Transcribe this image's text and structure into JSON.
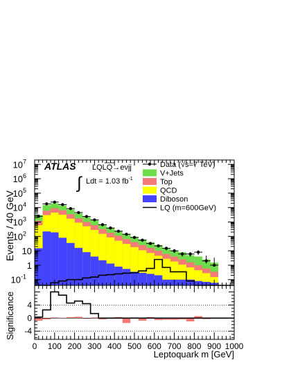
{
  "chart_data": [
    {
      "type": "area",
      "panel": "main",
      "ylabel": "Events / 40 GeV",
      "yscale": "log",
      "ylim": [
        0.04,
        20000000
      ],
      "xlim": [
        0,
        1000
      ],
      "bin_edges": [
        0,
        40,
        80,
        120,
        160,
        200,
        240,
        280,
        320,
        360,
        400,
        440,
        480,
        520,
        560,
        600,
        640,
        680,
        720,
        760,
        800,
        840,
        880,
        920,
        960,
        1000
      ],
      "y_ticks": [
        {
          "label_base": "10",
          "label_exp": "7",
          "value": 10000000
        },
        {
          "label_base": "10",
          "label_exp": "6",
          "value": 1000000
        },
        {
          "label_base": "10",
          "label_exp": "5",
          "value": 100000
        },
        {
          "label_base": "10",
          "label_exp": "4",
          "value": 10000
        },
        {
          "label_base": "10",
          "label_exp": "3",
          "value": 1000
        },
        {
          "label_base": "10",
          "label_exp": "2",
          "value": 100
        },
        {
          "label_base": "10",
          "label_exp": "",
          "value": 10
        },
        {
          "label_base": "1",
          "label_exp": "",
          "value": 1
        },
        {
          "label_base": "10",
          "label_exp": "-1",
          "value": 0.1
        }
      ],
      "stack_cumulative": [
        {
          "name": "V+Jets",
          "color": "#6fdc4b",
          "values": [
            3000,
            15000,
            20000,
            14000,
            7500,
            4000,
            2200,
            1300,
            700,
            400,
            240,
            150,
            90,
            60,
            40,
            25,
            15,
            10,
            8,
            5,
            4,
            2.5,
            1.5,
            0,
            0
          ]
        },
        {
          "name": "Top",
          "color": "#f57b76",
          "values": [
            1200,
            6000,
            9000,
            6500,
            3500,
            1800,
            1000,
            600,
            320,
            180,
            110,
            65,
            40,
            25,
            16,
            10,
            6,
            4,
            2.5,
            1.6,
            1,
            0.6,
            0.35,
            0,
            0
          ]
        },
        {
          "name": "QCD",
          "color": "#ffff00",
          "values": [
            600,
            3000,
            4500,
            3200,
            1700,
            900,
            500,
            280,
            150,
            85,
            50,
            30,
            18,
            11,
            7,
            4.5,
            2.8,
            1.8,
            1.1,
            0.7,
            0.45,
            0.28,
            0.15,
            0,
            0
          ]
        },
        {
          "name": "Diboson",
          "color": "#4444ff",
          "values": [
            15,
            220,
            190,
            80,
            35,
            16,
            8,
            4,
            2.2,
            1.3,
            0.8,
            0.55,
            0.35,
            0.3,
            0.25,
            0.2,
            0.1,
            0.1,
            0.1,
            0.1,
            0.08,
            0.07,
            0.06,
            0,
            0
          ]
        }
      ],
      "data_points": {
        "name": "Data (√s=7 TeV)",
        "x": [
          20,
          60,
          100,
          140,
          180,
          220,
          260,
          300,
          340,
          380,
          420,
          460,
          500,
          540,
          580,
          620,
          660,
          700,
          740,
          780,
          820,
          860,
          900
        ],
        "y": [
          2500,
          18000,
          24000,
          16000,
          8500,
          4500,
          2400,
          1400,
          650,
          380,
          230,
          140,
          85,
          55,
          32,
          22,
          15,
          10,
          6,
          6,
          8,
          2,
          1
        ],
        "err_low": [
          2450,
          17850,
          23840,
          15870,
          8410,
          4430,
          2350,
          1360,
          620,
          360,
          215,
          128,
          75,
          47,
          26,
          17,
          11,
          7,
          4,
          4,
          5.2,
          1.3,
          0.8
        ],
        "err_high": [
          2550,
          18150,
          24160,
          16130,
          8590,
          4570,
          2450,
          1440,
          680,
          400,
          245,
          152,
          95,
          63,
          38,
          27,
          19,
          13,
          8,
          8,
          10.8,
          4.6,
          3.3
        ]
      },
      "signal": {
        "name": "LQ (m=600GeV)",
        "values": [
          0.04,
          0.04,
          0.06,
          0.08,
          0.1,
          0.1,
          0.13,
          0.15,
          0.2,
          0.22,
          0.25,
          0.28,
          0.3,
          0.4,
          0.6,
          2.5,
          0.7,
          0.35,
          0.35,
          0.08,
          0.04,
          0.04,
          0.04,
          0.04,
          0.04
        ]
      },
      "legend": [
        {
          "label": "Data (√s=7 TeV)",
          "kind": "data"
        },
        {
          "label": "V+Jets",
          "kind": "fill",
          "color": "#6fdc4b"
        },
        {
          "label": "Top",
          "kind": "fill",
          "color": "#f57b76"
        },
        {
          "label": "QCD",
          "kind": "fill",
          "color": "#ffff00"
        },
        {
          "label": "Diboson",
          "kind": "fill",
          "color": "#4444ff"
        },
        {
          "label": "LQ (m=600GeV)",
          "kind": "line"
        }
      ],
      "legend_position": "top-right",
      "annotations": {
        "experiment": "ATLAS",
        "channel": "LQLQ→eνjj",
        "lumi_prefix": "Ldt = 1.03 fb",
        "lumi_exp": "-1"
      }
    },
    {
      "type": "bar",
      "panel": "ratio",
      "ylabel": "Significance",
      "xlabel": "Leptoquark m [GeV]",
      "xlim": [
        0,
        1000
      ],
      "ylim": [
        -6.5,
        10
      ],
      "x_ticks": [
        0,
        100,
        200,
        300,
        400,
        500,
        600,
        700,
        800,
        900,
        1000
      ],
      "y_ticks": [
        -4,
        0,
        4
      ],
      "dotted_lines": [
        -4,
        4
      ],
      "bin_edges": [
        0,
        40,
        80,
        120,
        160,
        200,
        240,
        280,
        320,
        360,
        400,
        440,
        480,
        520,
        560,
        600,
        640,
        680,
        720,
        760,
        800,
        840,
        880,
        920,
        960,
        1000
      ],
      "significance_values": [
        -0.8,
        -0.4,
        0.2,
        0.1,
        0.3,
        0.4,
        -0.2,
        0.2,
        -0.4,
        -0.2,
        0.3,
        -1.5,
        0.2,
        -0.8,
        0.3,
        -0.6,
        -0.5,
        -0.5,
        -0.4,
        -1.0,
        0.6,
        -0.3,
        0,
        0,
        0
      ],
      "signal_significance": [
        0.3,
        2.5,
        8.0,
        7.0,
        4.6,
        5.2,
        4.4,
        1.4,
        0,
        0,
        0,
        0,
        0,
        0,
        0,
        0,
        0,
        0,
        0,
        0,
        0,
        0,
        0,
        0,
        0
      ],
      "fill_color": "#f57b76"
    }
  ]
}
